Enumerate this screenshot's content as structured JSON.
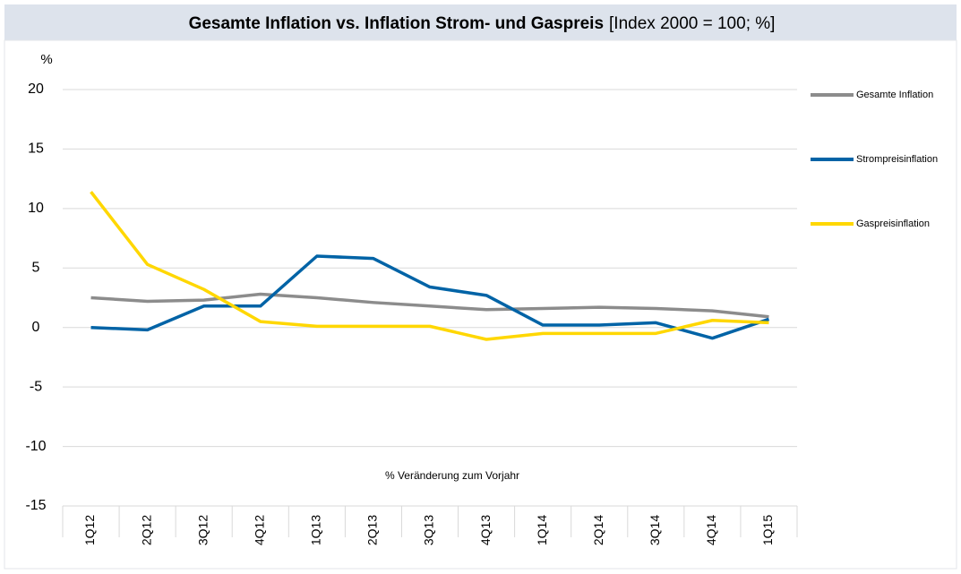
{
  "chart_data": {
    "type": "line",
    "title": "Gesamte Inflation vs. Inflation Strom- und Gaspreis",
    "subtitle": "[Index 2000 = 100; %]",
    "y_label": "%",
    "annotation": "% Veränderung zum Vorjahr",
    "categories": [
      "1Q12",
      "2Q12",
      "3Q12",
      "4Q12",
      "1Q13",
      "2Q13",
      "3Q13",
      "4Q13",
      "1Q14",
      "2Q14",
      "3Q14",
      "4Q14",
      "1Q15"
    ],
    "series": [
      {
        "name": "Gesamte Inflation",
        "color": "#8c8c8c",
        "values": [
          2.5,
          2.2,
          2.3,
          2.8,
          2.5,
          2.1,
          1.8,
          1.5,
          1.6,
          1.7,
          1.6,
          1.4,
          0.9
        ]
      },
      {
        "name": "Strompreisinflation",
        "color": "#0063a6",
        "values": [
          0,
          -0.2,
          1.8,
          1.8,
          6.0,
          5.8,
          3.4,
          2.7,
          0.2,
          0.2,
          0.4,
          -0.9,
          0.7
        ]
      },
      {
        "name": "Gaspreisinflation",
        "color": "#ffd700",
        "values": [
          11.4,
          5.3,
          3.2,
          0.5,
          0.1,
          0.1,
          0.1,
          -1.0,
          -0.5,
          -0.5,
          -0.5,
          0.6,
          0.4
        ]
      }
    ],
    "ylim": [
      -15,
      20
    ],
    "yticks": [
      -15,
      -10,
      -5,
      0,
      5,
      10,
      15,
      20
    ],
    "grid": true,
    "legend": "right"
  }
}
